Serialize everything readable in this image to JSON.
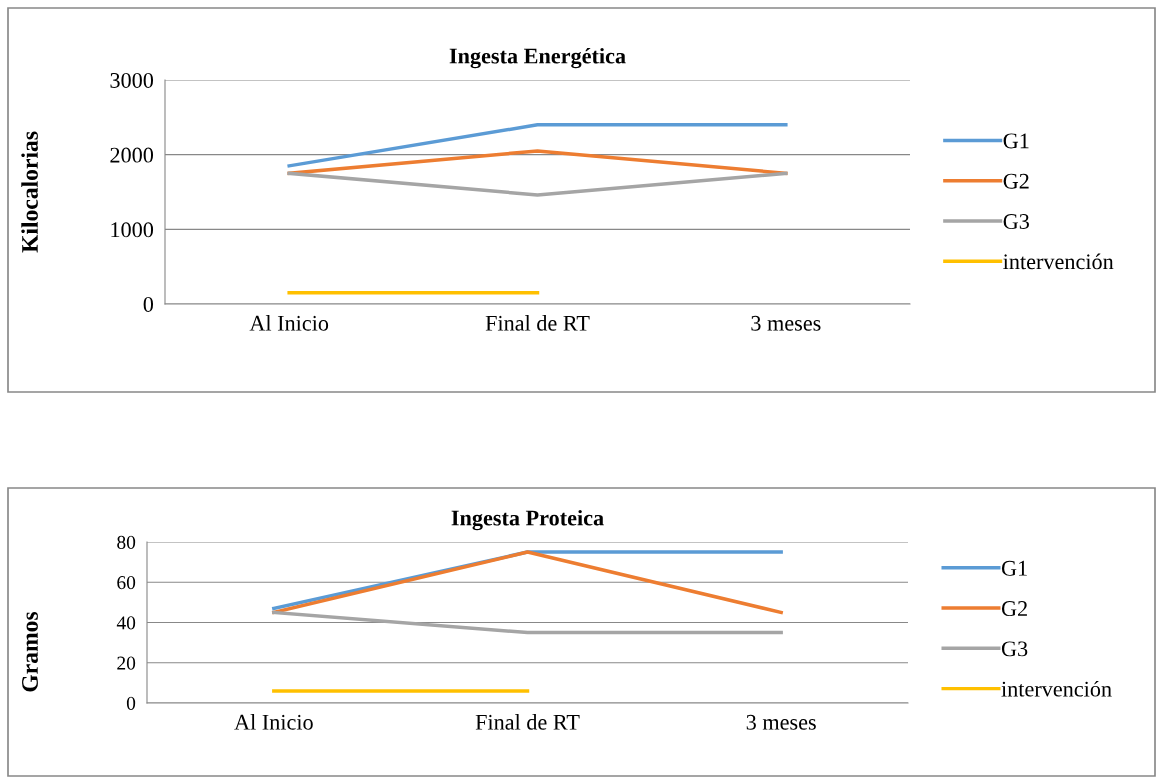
{
  "chart_data": [
    {
      "type": "line",
      "title": "Ingesta Energética",
      "ylabel": "Kilocalorias",
      "categories": [
        "Al Inicio",
        "Final de RT",
        "3 meses"
      ],
      "ylim": [
        0,
        3000
      ],
      "yticks": [
        0,
        1000,
        2000,
        3000
      ],
      "grid": "y",
      "legend": "right",
      "series": [
        {
          "name": "G1",
          "color": "#5b9bd5",
          "values": [
            1850,
            2400,
            2400
          ]
        },
        {
          "name": "G2",
          "color": "#ed7d31",
          "values": [
            1750,
            2050,
            1750
          ]
        },
        {
          "name": "G3",
          "color": "#a5a5a5",
          "values": [
            1750,
            1460,
            1750
          ]
        },
        {
          "name": "intervención",
          "color": "#ffc000",
          "values": [
            150,
            150,
            null
          ]
        }
      ]
    },
    {
      "type": "line",
      "title": "Ingesta Proteica",
      "ylabel": "Gramos",
      "categories": [
        "Al Inicio",
        "Final de RT",
        "3 meses"
      ],
      "ylim": [
        0,
        80
      ],
      "yticks": [
        0,
        20,
        40,
        60,
        80
      ],
      "grid": "y",
      "legend": "right",
      "series": [
        {
          "name": "G1",
          "color": "#5b9bd5",
          "values": [
            47,
            75,
            75
          ]
        },
        {
          "name": "G2",
          "color": "#ed7d31",
          "values": [
            45,
            75,
            45
          ]
        },
        {
          "name": "G3",
          "color": "#a5a5a5",
          "values": [
            45,
            35,
            35
          ]
        },
        {
          "name": "intervención",
          "color": "#ffc000",
          "values": [
            6,
            6,
            null
          ]
        }
      ]
    }
  ]
}
